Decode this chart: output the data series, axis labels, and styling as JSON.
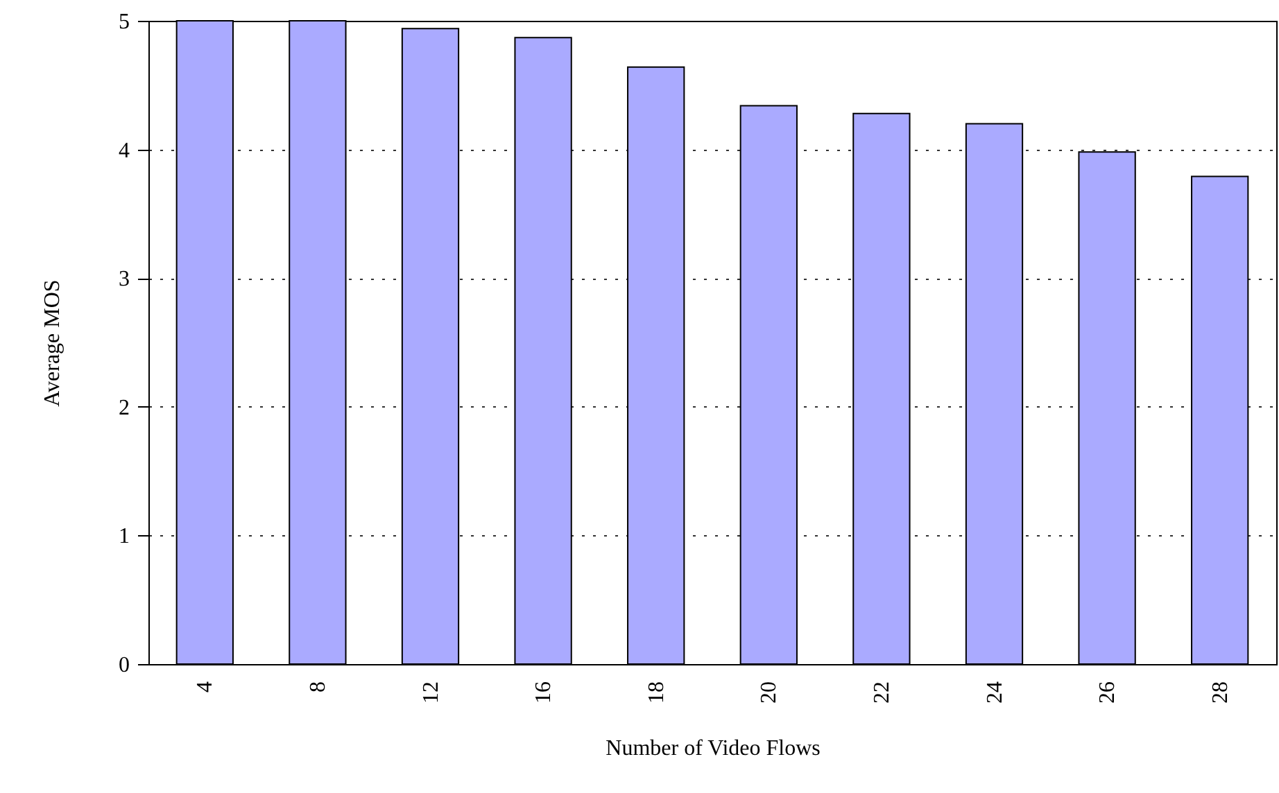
{
  "chart_data": {
    "type": "bar",
    "xlabel": "Number of Video Flows",
    "ylabel": "Average MOS",
    "categories": [
      "4",
      "8",
      "12",
      "16",
      "18",
      "20",
      "22",
      "24",
      "26",
      "28"
    ],
    "values": [
      5.0,
      5.0,
      4.94,
      4.87,
      4.64,
      4.34,
      4.28,
      4.2,
      3.98,
      3.79
    ],
    "color": "#aaaaff",
    "ylim": [
      0,
      5
    ],
    "yticks": [
      0,
      1,
      2,
      3,
      4,
      5
    ],
    "grid": "y",
    "line_style": "dotted"
  }
}
